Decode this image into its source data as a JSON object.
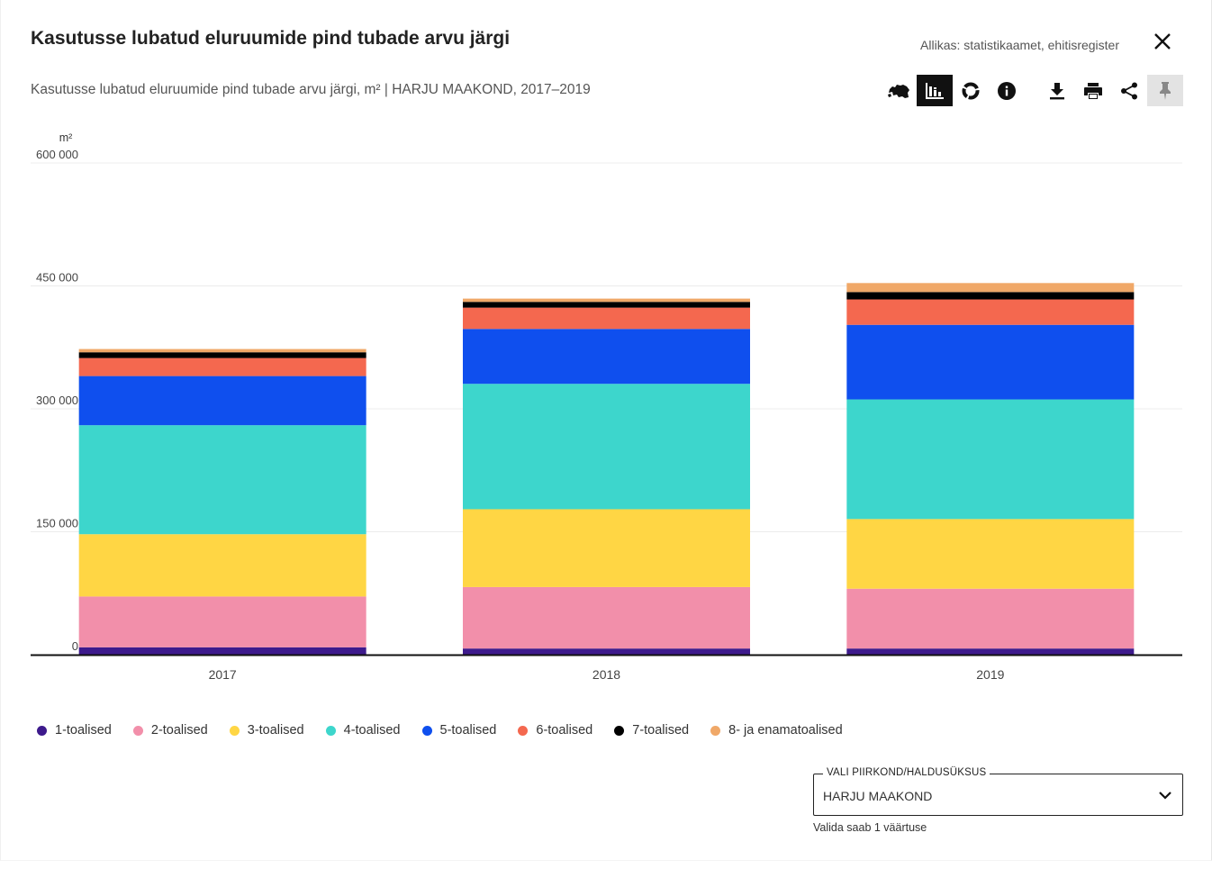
{
  "header": {
    "title": "Kasutusse lubatud eluruumide pind tubade arvu järgi",
    "source": "Allikas: statistikaamet, ehitisregister",
    "subtitle": "Kasutusse lubatud eluruumide pind tubade arvu järgi, m² | HARJU MAAKOND, 2017–2019"
  },
  "toolbar": {
    "icons": [
      "estonia-map-icon",
      "bar-chart-icon",
      "donut-chart-icon",
      "info-icon",
      "download-icon",
      "print-icon",
      "share-icon",
      "pin-icon"
    ],
    "active": "bar-chart-icon"
  },
  "chart_data": {
    "type": "bar",
    "stacked": true,
    "unit_label": "m²",
    "categories": [
      "2017",
      "2018",
      "2019"
    ],
    "ylim": [
      0,
      600000
    ],
    "yticks": [
      0,
      150000,
      300000,
      450000,
      600000
    ],
    "ytick_labels": [
      "0",
      "150 000",
      "300 000",
      "450 000",
      "600 000"
    ],
    "grid": true,
    "series": [
      {
        "name": "1-toalised",
        "color": "#3d1a8c",
        "values": [
          9000,
          7500,
          7500
        ]
      },
      {
        "name": "2-toalised",
        "color": "#f28faa",
        "values": [
          62000,
          75000,
          73000
        ]
      },
      {
        "name": "3-toalised",
        "color": "#ffd644",
        "values": [
          76000,
          95000,
          85000
        ]
      },
      {
        "name": "4-toalised",
        "color": "#3dd6cc",
        "values": [
          133000,
          153000,
          146000
        ]
      },
      {
        "name": "5-toalised",
        "color": "#0f4fee",
        "values": [
          60000,
          67000,
          91000
        ]
      },
      {
        "name": "6-toalised",
        "color": "#f4684f",
        "values": [
          22000,
          26000,
          31000
        ]
      },
      {
        "name": "7-toalised",
        "color": "#000000",
        "values": [
          7000,
          7000,
          9000
        ]
      },
      {
        "name": "8- ja enamatoalised",
        "color": "#f0a868",
        "values": [
          4000,
          4000,
          11000
        ]
      }
    ],
    "legend_position": "bottom-left"
  },
  "filter": {
    "label": "VALI PIIRKOND/HALDUSÜKSUS",
    "value": "HARJU MAAKOND",
    "helper": "Valida saab 1 väärtuse"
  }
}
